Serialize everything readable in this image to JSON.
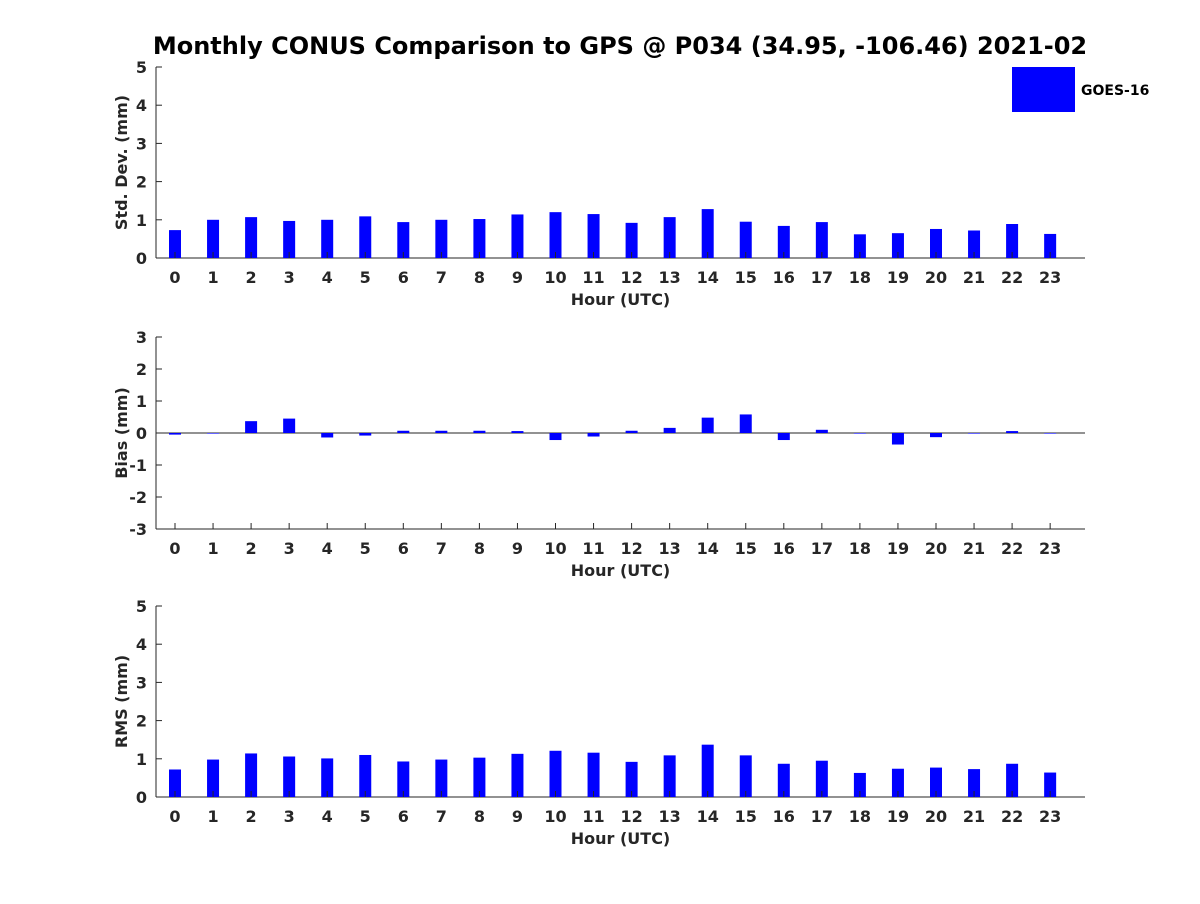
{
  "figure": {
    "title": "Monthly CONUS Comparison to GPS @ P034 (34.95, -106.46) 2021-02",
    "legend": {
      "label": "GOES-16",
      "color": "#0000ff"
    },
    "bar_color": "#0000ff"
  },
  "chart_data": [
    {
      "type": "bar",
      "name": "std-dev",
      "title": "Monthly CONUS Comparison to GPS @ P034 (34.95, -106.46) 2021-02",
      "xlabel": "Hour (UTC)",
      "ylabel": "Std. Dev. (mm)",
      "ylim": [
        0,
        5
      ],
      "yticks": [
        0,
        1,
        2,
        3,
        4,
        5
      ],
      "categories": [
        "0",
        "1",
        "2",
        "3",
        "4",
        "5",
        "6",
        "7",
        "8",
        "9",
        "10",
        "11",
        "12",
        "13",
        "14",
        "15",
        "16",
        "17",
        "18",
        "19",
        "20",
        "21",
        "22",
        "23"
      ],
      "series": [
        {
          "name": "GOES-16",
          "values": [
            0.73,
            1.0,
            1.07,
            0.97,
            1.0,
            1.09,
            0.94,
            1.0,
            1.02,
            1.14,
            1.2,
            1.15,
            0.92,
            1.07,
            1.28,
            0.95,
            0.84,
            0.94,
            0.62,
            0.65,
            0.76,
            0.72,
            0.89,
            0.63
          ]
        }
      ],
      "legend": "top-right"
    },
    {
      "type": "bar",
      "name": "bias",
      "xlabel": "Hour (UTC)",
      "ylabel": "Bias (mm)",
      "ylim": [
        -3,
        3
      ],
      "yticks": [
        -3,
        -2,
        -1,
        0,
        1,
        2,
        3
      ],
      "categories": [
        "0",
        "1",
        "2",
        "3",
        "4",
        "5",
        "6",
        "7",
        "8",
        "9",
        "10",
        "11",
        "12",
        "13",
        "14",
        "15",
        "16",
        "17",
        "18",
        "19",
        "20",
        "21",
        "22",
        "23"
      ],
      "series": [
        {
          "name": "GOES-16",
          "values": [
            -0.05,
            -0.01,
            0.37,
            0.45,
            -0.14,
            -0.08,
            0.07,
            0.07,
            0.07,
            0.06,
            -0.22,
            -0.11,
            0.07,
            0.16,
            0.48,
            0.58,
            -0.22,
            0.1,
            -0.01,
            -0.36,
            -0.13,
            -0.01,
            0.06,
            -0.01
          ]
        }
      ]
    },
    {
      "type": "bar",
      "name": "rms",
      "xlabel": "Hour (UTC)",
      "ylabel": "RMS (mm)",
      "ylim": [
        0,
        5
      ],
      "yticks": [
        0,
        1,
        2,
        3,
        4,
        5
      ],
      "categories": [
        "0",
        "1",
        "2",
        "3",
        "4",
        "5",
        "6",
        "7",
        "8",
        "9",
        "10",
        "11",
        "12",
        "13",
        "14",
        "15",
        "16",
        "17",
        "18",
        "19",
        "20",
        "21",
        "22",
        "23"
      ],
      "series": [
        {
          "name": "GOES-16",
          "values": [
            0.72,
            0.98,
            1.14,
            1.06,
            1.01,
            1.1,
            0.93,
            0.98,
            1.03,
            1.13,
            1.21,
            1.16,
            0.92,
            1.09,
            1.37,
            1.09,
            0.87,
            0.95,
            0.63,
            0.74,
            0.77,
            0.73,
            0.87,
            0.64
          ]
        }
      ]
    }
  ]
}
